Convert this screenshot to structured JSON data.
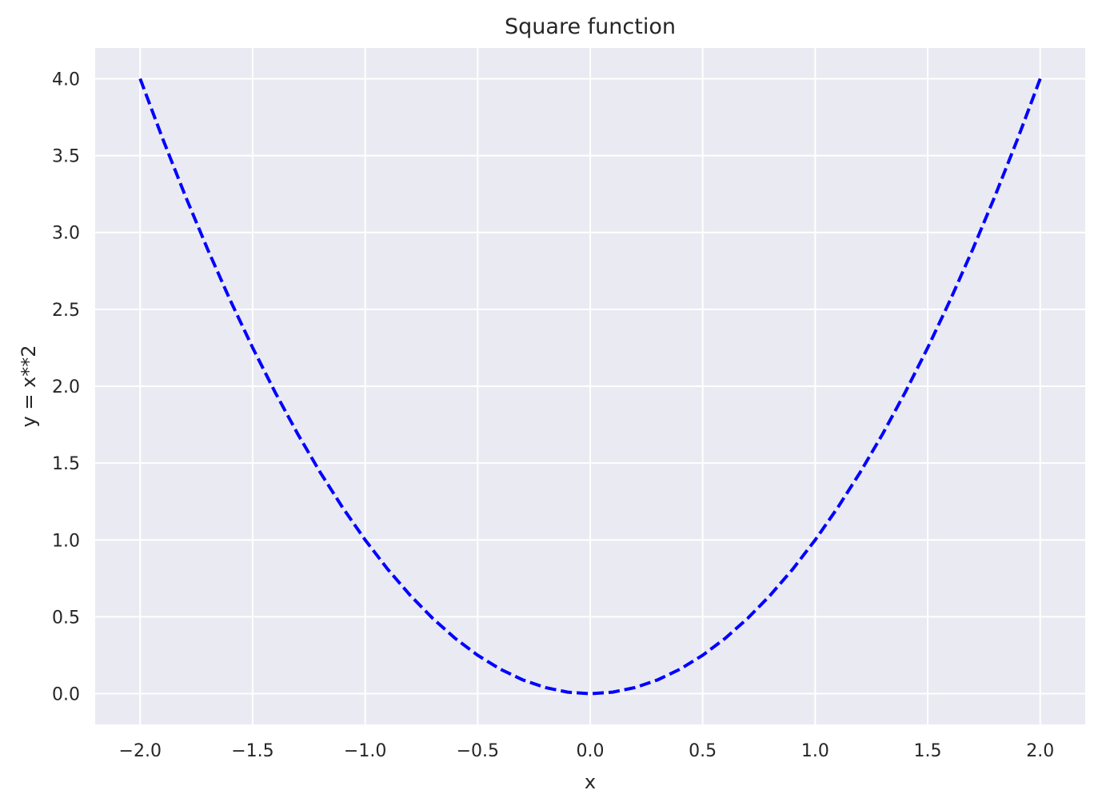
{
  "chart_data": {
    "type": "line",
    "title": "Square function",
    "xlabel": "x",
    "ylabel": "y = x**2",
    "xlim": [
      -2.2,
      2.2
    ],
    "ylim": [
      -0.2,
      4.2
    ],
    "xticks": [
      -2.0,
      -1.5,
      -1.0,
      -0.5,
      0.0,
      0.5,
      1.0,
      1.5,
      2.0
    ],
    "xtick_labels": [
      "−2.0",
      "−1.5",
      "−1.0",
      "−0.5",
      "0.0",
      "0.5",
      "1.0",
      "1.5",
      "2.0"
    ],
    "yticks": [
      0.0,
      0.5,
      1.0,
      1.5,
      2.0,
      2.5,
      3.0,
      3.5,
      4.0
    ],
    "ytick_labels": [
      "0.0",
      "0.5",
      "1.0",
      "1.5",
      "2.0",
      "2.5",
      "3.0",
      "3.5",
      "4.0"
    ],
    "grid": true,
    "style": {
      "background": "#eaeaf2",
      "grid_color": "#ffffff",
      "line_color": "#0000ff",
      "line_style": "dashed"
    },
    "series": [
      {
        "x": [
          -2.0,
          -1.9,
          -1.8,
          -1.7,
          -1.6,
          -1.5,
          -1.4,
          -1.3,
          -1.2,
          -1.1,
          -1.0,
          -0.9,
          -0.8,
          -0.7,
          -0.6,
          -0.5,
          -0.4,
          -0.3,
          -0.2,
          -0.1,
          0.0,
          0.1,
          0.2,
          0.3,
          0.4,
          0.5,
          0.6,
          0.7,
          0.8,
          0.9,
          1.0,
          1.1,
          1.2,
          1.3,
          1.4,
          1.5,
          1.6,
          1.7,
          1.8,
          1.9,
          2.0
        ],
        "y": [
          4.0,
          3.61,
          3.24,
          2.89,
          2.56,
          2.25,
          1.96,
          1.69,
          1.44,
          1.21,
          1.0,
          0.81,
          0.64,
          0.49,
          0.36,
          0.25,
          0.16,
          0.09,
          0.04,
          0.01,
          0.0,
          0.01,
          0.04,
          0.09,
          0.16,
          0.25,
          0.36,
          0.49,
          0.64,
          0.81,
          1.0,
          1.21,
          1.44,
          1.69,
          1.96,
          2.25,
          2.56,
          2.89,
          3.24,
          3.61,
          4.0
        ]
      }
    ]
  }
}
